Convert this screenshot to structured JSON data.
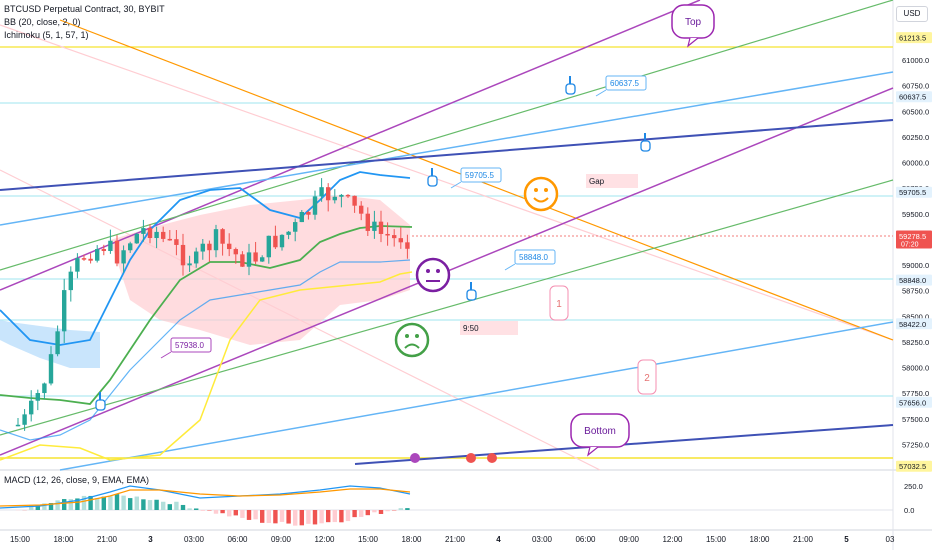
{
  "header": {
    "symbol": "BTCUSD Perpetual Contract, 30, BYBIT",
    "indicators": [
      "BB (20, close, 2, 0)",
      "Ichimoku (5, 1, 57, 1)"
    ],
    "currency": "USD"
  },
  "chart_data": {
    "type": "candlestick",
    "price_axis": {
      "ticks": [
        "61000.0",
        "60750.0",
        "60500.0",
        "60250.0",
        "60000.0",
        "59750.0",
        "59500.0",
        "59250.0",
        "59000.0",
        "58750.0",
        "58500.0",
        "58250.0",
        "58000.0",
        "57750.0",
        "57500.0",
        "57250.0"
      ],
      "badges": [
        {
          "label": "61213.5",
          "kind": "yellow"
        },
        {
          "label": "60637.5",
          "kind": "blue"
        },
        {
          "label": "59705.5",
          "kind": "blue"
        },
        {
          "label": "59278.5",
          "kind": "red",
          "sub": "07:20"
        },
        {
          "label": "58848.0",
          "kind": "blue"
        },
        {
          "label": "58422.0",
          "kind": "blue"
        },
        {
          "label": "57656.0",
          "kind": "blue"
        },
        {
          "label": "57032.5",
          "kind": "yellow"
        }
      ]
    },
    "time_axis": [
      "15:00",
      "18:00",
      "21:00",
      "3",
      "03:00",
      "06:00",
      "09:00",
      "12:00",
      "15:00",
      "18:00",
      "21:00",
      "4",
      "03:00",
      "06:00",
      "09:00",
      "12:00",
      "15:00",
      "18:00",
      "21:00",
      "5",
      "03"
    ],
    "annotations": {
      "price_labels": [
        "60637.5",
        "59705.5",
        "58848.0",
        "57938.0"
      ],
      "callouts": [
        "Top",
        "Bottom"
      ],
      "tags": [
        "Gap",
        "9:50"
      ],
      "numbers": [
        "1",
        "2"
      ]
    },
    "macd": {
      "label": "MACD (12, 26, close, 9, EMA, EMA)",
      "ticks": [
        "250.0",
        "0.0"
      ]
    },
    "colors": {
      "up": "#26a69a",
      "down": "#ef5350",
      "bb": "#2196f3",
      "basis": "#4caf50",
      "cloud": "#ffcdd2",
      "slow": "#ffeb3b"
    }
  }
}
